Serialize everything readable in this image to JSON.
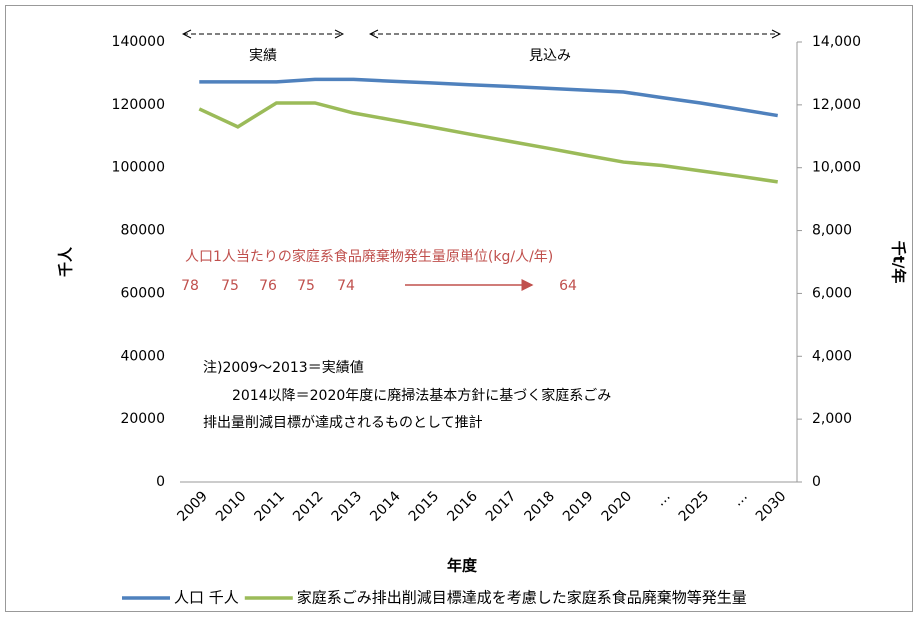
{
  "chart_data": {
    "type": "line",
    "categories": [
      "2009",
      "2010",
      "2011",
      "2012",
      "2013",
      "2014",
      "2015",
      "2016",
      "2017",
      "2018",
      "2019",
      "2020",
      "…",
      "2025",
      "…",
      "2030"
    ],
    "series": [
      {
        "name": "人口 千人",
        "color": "#4f81bd",
        "values": [
          127300,
          127300,
          127300,
          128100,
          128100,
          127500,
          127000,
          126400,
          125900,
          125300,
          124700,
          124100,
          122300,
          120600,
          118600,
          116600
        ]
      },
      {
        "name": "家庭系ごみ排出削減目標達成を考慮した家庭系食品廃棄物等発生量",
        "color": "#9bbb59",
        "axis": "y2",
        "values": [
          11870,
          11300,
          12060,
          12060,
          11740,
          11520,
          11300,
          11070,
          10850,
          10630,
          10400,
          10180,
          10070,
          9900,
          9730,
          9550
        ]
      }
    ],
    "ylim": [
      0,
      140000
    ],
    "yticks": [
      0,
      20000,
      40000,
      60000,
      80000,
      100000,
      120000,
      140000
    ],
    "y2lim": [
      0,
      14000
    ],
    "y2ticks": [
      0,
      {
        "value": 2000,
        "label": "2,000"
      },
      {
        "value": 4000,
        "label": "4,000"
      },
      {
        "value": 6000,
        "label": "6,000"
      },
      {
        "value": 8000,
        "label": "8,000"
      },
      {
        "value": 10000,
        "label": "10,000"
      },
      {
        "value": 12000,
        "label": "12,000"
      },
      {
        "value": 14000,
        "label": "14,000"
      }
    ],
    "ylabel": "千人",
    "y2label": "千t/年",
    "xlabel": "年度",
    "legend": "bottom",
    "annotations": {
      "actual": "実績",
      "forecast": "見込み",
      "per_capita_title": "人口1人当たりの家庭系食品廃棄物発生量原単位(kg/人/年)",
      "per_capita_values": [
        78,
        75,
        76,
        75,
        74,
        64
      ],
      "note": [
        "注)2009～2013＝実績値",
        "2014以降＝2020年度に廃掃法基本方針に基づく家庭系ごみ",
        "排出量削減目標が達成されるものとして推計"
      ]
    }
  }
}
